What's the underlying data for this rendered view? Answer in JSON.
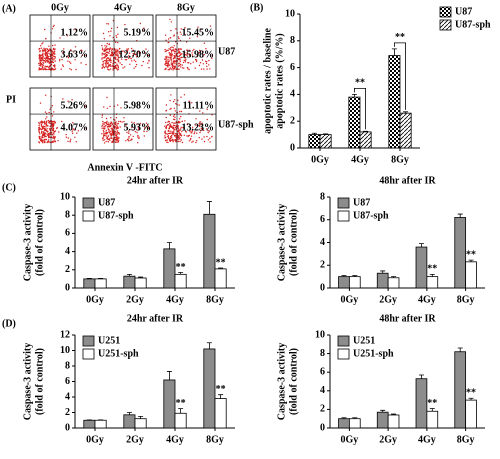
{
  "flow_cytometry": {
    "panel_label": "(A)",
    "columns": [
      "0Gy",
      "4Gy",
      "8Gy"
    ],
    "rows": [
      {
        "name": "U87",
        "upper": [
          "1.12%",
          "5.19%",
          "15.45%"
        ],
        "lower": [
          "3.63%",
          "12.70%",
          "15.98%"
        ]
      },
      {
        "name": "U87-sph",
        "upper": [
          "5.26%",
          "5.98%",
          "11.11%"
        ],
        "lower": [
          "4.07%",
          "5.93%",
          "13.23%"
        ]
      }
    ],
    "y_label": "PI",
    "x_label": "Annexin V -FITC"
  },
  "chart_data": [
    {
      "type": "bar",
      "panel_label": "(B)",
      "y_label": [
        "apoptotic rates / baseline",
        "apoptotic rates (%/%)"
      ],
      "categories": [
        "0Gy",
        "4Gy",
        "8Gy"
      ],
      "ylim": [
        0,
        10
      ],
      "yticks": [
        0,
        2,
        4,
        6,
        8,
        10
      ],
      "series": [
        {
          "name": "U87",
          "color": "#000000",
          "pattern": "checker",
          "values": [
            1.0,
            3.8,
            6.9
          ],
          "errors": [
            0.1,
            0.2,
            0.5
          ]
        },
        {
          "name": "U87-sph",
          "color": "#000000",
          "pattern": "hatch",
          "values": [
            1.0,
            1.2,
            2.6
          ],
          "errors": [
            0.05,
            0.05,
            0.1
          ]
        }
      ],
      "significance": [
        null,
        "**",
        "**"
      ],
      "legend": "outside-right"
    },
    {
      "type": "bar",
      "panel_label": "(C)",
      "title": "24hr after IR",
      "y_label": [
        "Caspase-3 activity",
        "(fold of control)"
      ],
      "categories": [
        "0Gy",
        "2Gy",
        "4Gy",
        "8Gy"
      ],
      "ylim": [
        0,
        10
      ],
      "yticks": [
        0,
        2,
        4,
        6,
        8,
        10
      ],
      "series": [
        {
          "name": "U87",
          "color": "#8c8c8c",
          "values": [
            1.0,
            1.3,
            4.3,
            8.1
          ],
          "errors": [
            0.05,
            0.2,
            0.7,
            1.4
          ]
        },
        {
          "name": "U87-sph",
          "color": "#ffffff",
          "values": [
            1.0,
            1.1,
            1.5,
            2.1
          ],
          "errors": [
            0.05,
            0.1,
            0.2,
            0.1
          ],
          "marks": [
            null,
            null,
            "**",
            "**"
          ]
        }
      ],
      "legend": "upper-left"
    },
    {
      "type": "bar",
      "title": "48hr after IR",
      "y_label": [
        "Caspase-3 activity",
        "(fold of control)"
      ],
      "categories": [
        "0Gy",
        "2Gy",
        "4Gy",
        "8Gy"
      ],
      "ylim": [
        0,
        8
      ],
      "yticks": [
        0,
        2,
        4,
        6,
        8
      ],
      "series": [
        {
          "name": "U87",
          "color": "#8c8c8c",
          "values": [
            1.0,
            1.3,
            3.6,
            6.2
          ],
          "errors": [
            0.1,
            0.2,
            0.3,
            0.3
          ]
        },
        {
          "name": "U87-sph",
          "color": "#ffffff",
          "values": [
            1.0,
            0.9,
            1.0,
            2.3
          ],
          "errors": [
            0.1,
            0.1,
            0.2,
            0.15
          ],
          "marks": [
            null,
            null,
            "**",
            "**"
          ]
        }
      ],
      "legend": "upper-left"
    },
    {
      "type": "bar",
      "panel_label": "(D)",
      "title": "24hr after IR",
      "y_label": [
        "Caspase-3 activity",
        "(fold of control)"
      ],
      "categories": [
        "0Gy",
        "2Gy",
        "4Gy",
        "8Gy"
      ],
      "ylim": [
        0,
        12
      ],
      "yticks": [
        0,
        2,
        4,
        6,
        8,
        10,
        12
      ],
      "series": [
        {
          "name": "U251",
          "color": "#8c8c8c",
          "values": [
            1.0,
            1.7,
            6.2,
            10.2
          ],
          "errors": [
            0.05,
            0.3,
            1.1,
            0.8
          ]
        },
        {
          "name": "U251-sph",
          "color": "#ffffff",
          "values": [
            1.0,
            1.2,
            1.9,
            3.8
          ],
          "errors": [
            0.05,
            0.3,
            0.6,
            0.5
          ],
          "marks": [
            null,
            null,
            "**",
            "**"
          ]
        }
      ],
      "legend": "upper-left"
    },
    {
      "type": "bar",
      "title": "48hr after IR",
      "y_label": [
        "Caspase-3 activity",
        "(fold of control)"
      ],
      "categories": [
        "0Gy",
        "2Gy",
        "4Gy",
        "8Gy"
      ],
      "ylim": [
        0,
        10
      ],
      "yticks": [
        0,
        2,
        4,
        6,
        8,
        10
      ],
      "series": [
        {
          "name": "U251",
          "color": "#8c8c8c",
          "values": [
            1.0,
            1.7,
            5.3,
            8.2
          ],
          "errors": [
            0.1,
            0.2,
            0.4,
            0.4
          ]
        },
        {
          "name": "U251-sph",
          "color": "#ffffff",
          "values": [
            1.0,
            1.4,
            1.8,
            3.0
          ],
          "errors": [
            0.1,
            0.1,
            0.3,
            0.2
          ],
          "marks": [
            null,
            null,
            "**",
            "**"
          ]
        }
      ],
      "legend": "upper-left"
    }
  ]
}
